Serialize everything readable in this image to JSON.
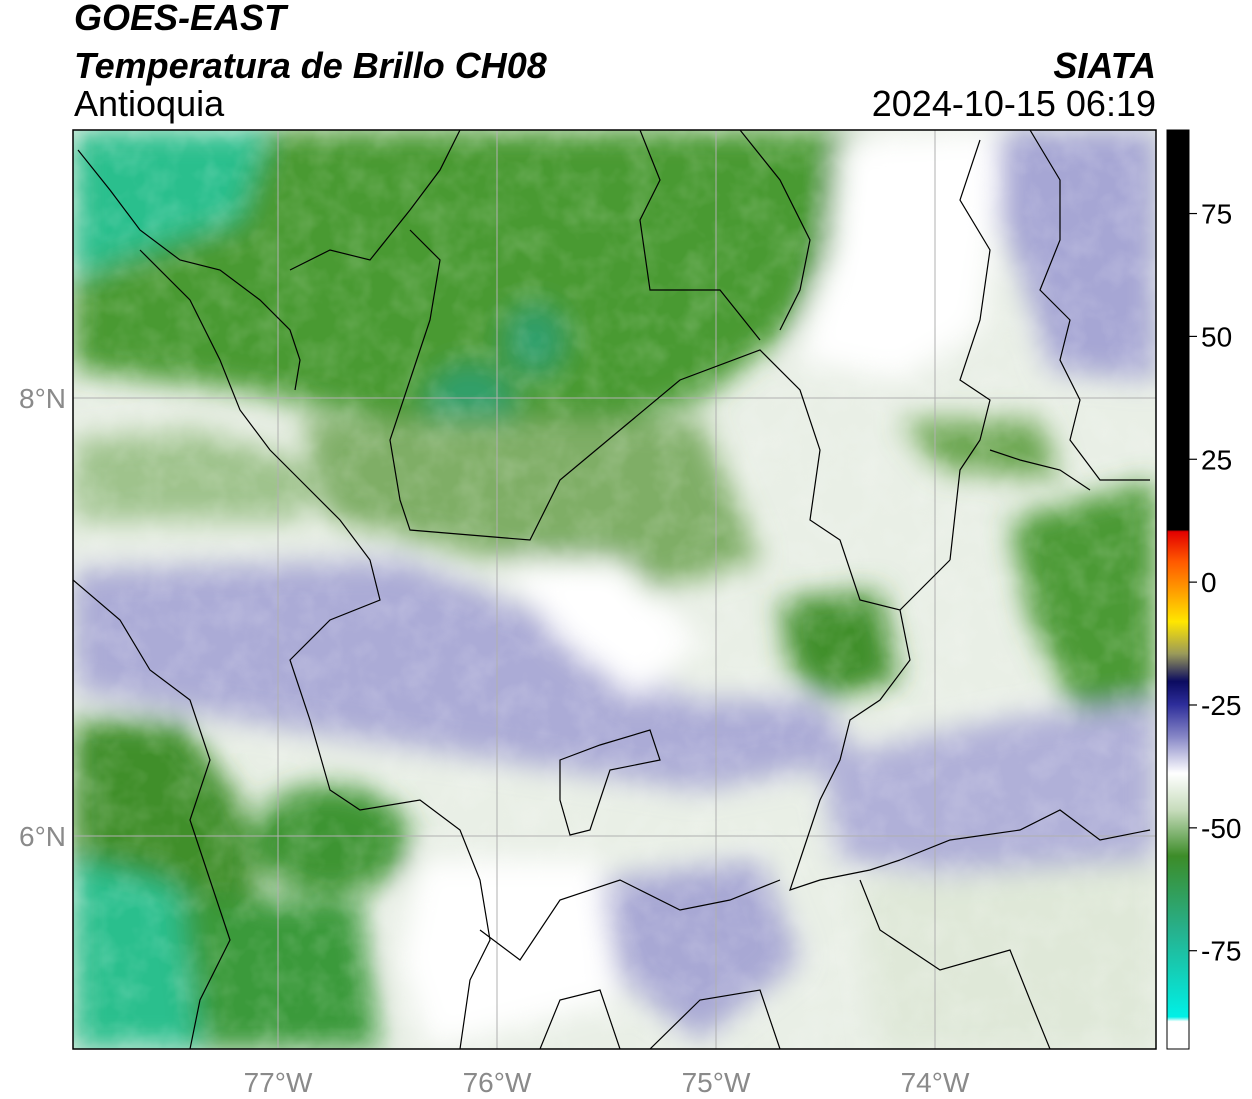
{
  "header": {
    "satellite": "GOES-EAST",
    "product": "Temperatura de Brillo CH08",
    "region": "Antioquia",
    "agency": "SIATA",
    "datetime": "2024-10-15 06:19"
  },
  "map": {
    "lon_range": [
      -77.95,
      -72.95
    ],
    "lat_range": [
      4.95,
      9.15
    ],
    "lon_ticks": [
      "77°W",
      "76°W",
      "75°W",
      "74°W"
    ],
    "lon_tick_values": [
      -77,
      -76,
      -75,
      -74
    ],
    "lat_ticks": [
      "8°N",
      "6°N"
    ],
    "lat_tick_values": [
      8,
      6
    ],
    "grid": true,
    "field": "brightness temperature",
    "colors": {
      "teal": "#2bbf8d",
      "green": "#3f8f2a",
      "light_green": "#c9dcc0",
      "white": "#ffffff",
      "lavender": "#b3b3d9",
      "blue_purple": "#8c8cc6"
    }
  },
  "colorbar": {
    "ticks": [
      "75",
      "50",
      "25",
      "0",
      "-25",
      "-50",
      "-75"
    ],
    "tick_values": [
      75,
      50,
      25,
      0,
      -25,
      -50,
      -75
    ],
    "range": [
      -95,
      92
    ]
  }
}
